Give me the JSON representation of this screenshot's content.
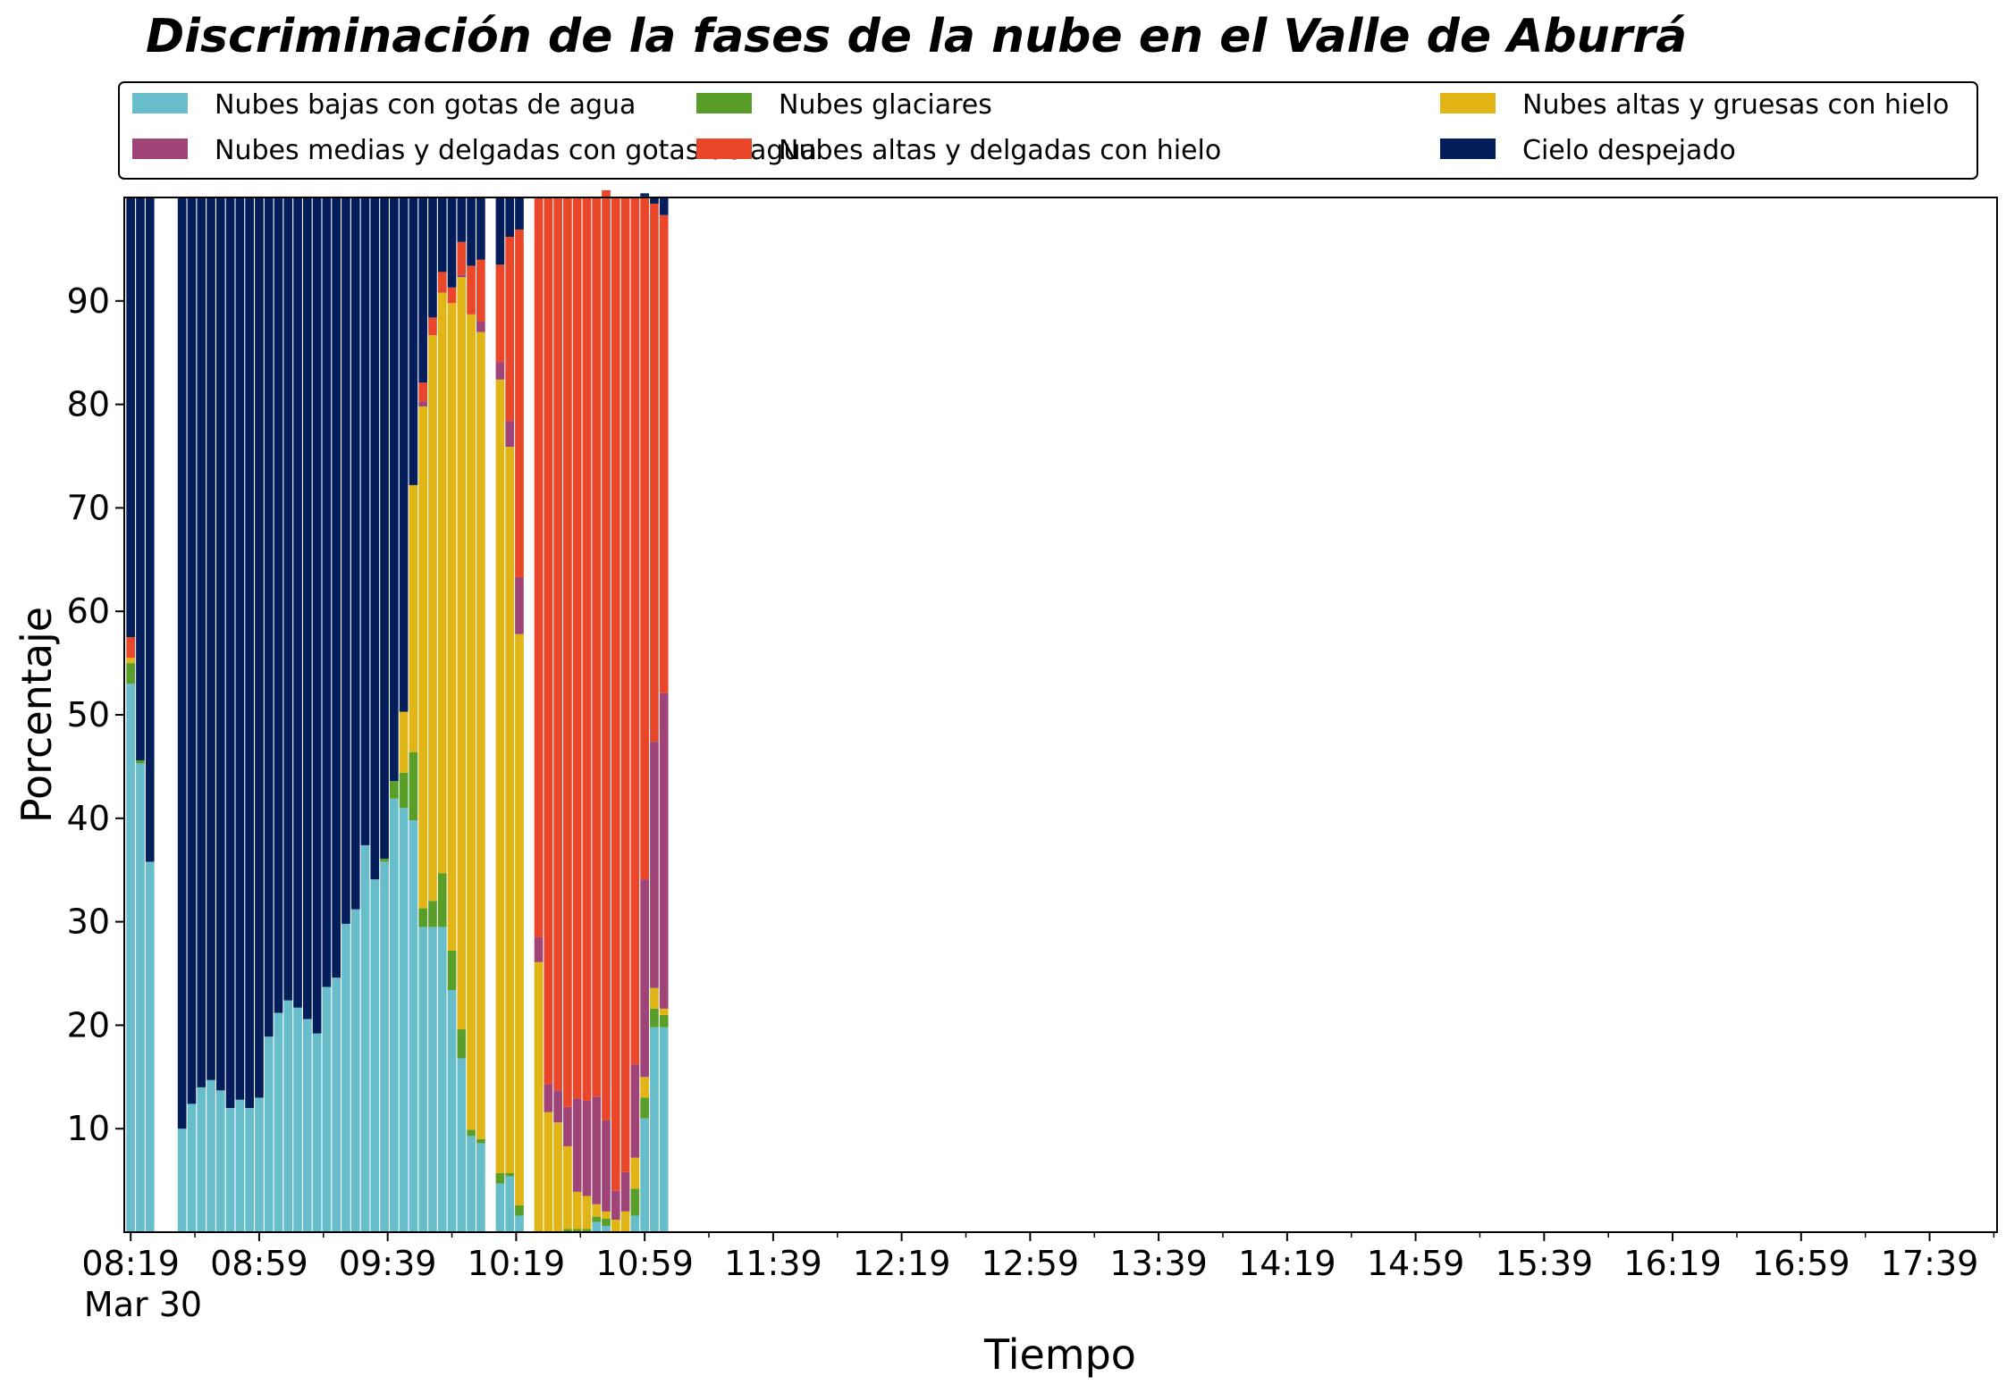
{
  "chart_data": {
    "type": "bar",
    "stacked": true,
    "title": "Discriminación de la fases de la nube en el Valle de Aburrá",
    "xlabel": "Tiempo",
    "ylabel": "Porcentaje",
    "date_label": "Mar 30",
    "ylim": [
      0,
      100
    ],
    "yticks": [
      10,
      20,
      30,
      40,
      50,
      60,
      70,
      80,
      90
    ],
    "xtick_labels": [
      "08:19",
      "08:59",
      "09:39",
      "10:19",
      "10:59",
      "11:39",
      "12:19",
      "12:59",
      "13:39",
      "14:19",
      "14:59",
      "15:39",
      "16:19",
      "16:59",
      "17:39"
    ],
    "xtick_minutes": [
      499,
      539,
      579,
      619,
      659,
      699,
      739,
      779,
      819,
      859,
      899,
      939,
      979,
      1019,
      1059
    ],
    "minor_tick_minutes": [
      479,
      519,
      559,
      599,
      639,
      679,
      719,
      759,
      799,
      839,
      879,
      919,
      959,
      999,
      1039,
      1079
    ],
    "xlim_minutes": [
      497,
      1080
    ],
    "legend_position": "top",
    "series": [
      {
        "name": "Nubes bajas con gotas de agua",
        "color": "#67bdc9",
        "values": [
          53.0,
          45.3,
          35.8,
          10.0,
          12.4,
          14.0,
          14.7,
          13.7,
          12.0,
          12.8,
          12.0,
          13.0,
          18.9,
          21.2,
          22.4,
          21.7,
          20.6,
          19.2,
          23.7,
          24.6,
          29.8,
          31.2,
          37.4,
          34.1,
          35.8,
          41.9,
          41.0,
          39.8,
          29.5,
          29.5,
          29.5,
          23.4,
          16.8,
          9.3,
          8.6,
          4.7,
          5.4,
          1.6,
          0,
          0,
          0,
          0,
          0,
          0,
          1.0,
          0.6,
          0,
          0,
          1.6,
          11.0,
          19.8,
          19.8
        ]
      },
      {
        "name": "Nubes glaciares",
        "color": "#5a9e2a",
        "values": [
          2.0,
          0.3,
          0,
          0,
          0,
          0,
          0,
          0,
          0,
          0,
          0,
          0,
          0,
          0,
          0,
          0,
          0,
          0,
          0,
          0,
          0,
          0,
          0,
          0,
          0.3,
          1.7,
          3.4,
          6.6,
          1.8,
          2.5,
          5.2,
          3.8,
          2.8,
          0.6,
          0.4,
          1.0,
          0.3,
          1.0,
          0,
          0,
          0,
          0.3,
          0.3,
          0.3,
          0.5,
          0.7,
          0,
          0,
          2.6,
          2.0,
          1.8,
          1.2
        ]
      },
      {
        "name": "Nubes altas y gruesas con hielo",
        "color": "#e1b515",
        "values": [
          0.5,
          0,
          0,
          0,
          0,
          0,
          0,
          0,
          0,
          0,
          0,
          0,
          0,
          0,
          0,
          0,
          0,
          0,
          0,
          0,
          0,
          0,
          0,
          0,
          0,
          0,
          5.9,
          25.8,
          48.5,
          54.7,
          56.1,
          62.6,
          72.7,
          78.8,
          78.0,
          76.7,
          70.2,
          55.2,
          26.1,
          11.6,
          10.6,
          8.0,
          3.6,
          3.2,
          1.2,
          0.7,
          1.2,
          2.0,
          3.0,
          2.0,
          2.0,
          0.6
        ]
      },
      {
        "name": "Nubes medias y delgadas con gotas de agua",
        "color": "#a04478",
        "values": [
          0,
          0,
          0,
          0,
          0,
          0,
          0,
          0,
          0,
          0,
          0,
          0,
          0,
          0,
          0,
          0,
          0,
          0,
          0,
          0,
          0,
          0,
          0,
          0,
          0,
          0,
          0,
          0,
          0.5,
          0,
          0,
          0,
          0.2,
          0,
          1.0,
          1.7,
          2.5,
          5.5,
          2.4,
          2.7,
          3.1,
          3.8,
          9.0,
          9.2,
          10.4,
          8.8,
          2.8,
          3.8,
          9.0,
          19.1,
          23.8,
          30.5
        ]
      },
      {
        "name": "Nubes altas y delgadas con hielo",
        "color": "#ea472a",
        "values": [
          2.0,
          0,
          0,
          0,
          0,
          0,
          0,
          0,
          0,
          0,
          0,
          0,
          0,
          0,
          0,
          0,
          0,
          0,
          0,
          0,
          0,
          0,
          0,
          0,
          0,
          0,
          0,
          0,
          1.8,
          1.7,
          2.0,
          1.5,
          3.2,
          4.7,
          6.0,
          9.4,
          17.8,
          33.6,
          71.5,
          85.7,
          86.3,
          87.9,
          87.1,
          87.3,
          86.9,
          89.9,
          96.0,
          94.2,
          83.8,
          66.0,
          52.0,
          46.2
        ]
      },
      {
        "name": "Cielo despejado",
        "color": "#041e5c",
        "values": [
          42.5,
          54.4,
          64.2,
          90.0,
          87.6,
          86.0,
          85.3,
          86.3,
          88.0,
          87.2,
          88.0,
          87.0,
          81.1,
          78.8,
          77.6,
          78.3,
          79.4,
          80.8,
          76.3,
          75.4,
          70.2,
          68.8,
          62.6,
          65.9,
          63.9,
          56.4,
          49.7,
          27.8,
          17.9,
          11.6,
          7.2,
          8.7,
          4.3,
          6.6,
          6.0,
          6.5,
          3.8,
          3.1,
          0,
          0,
          0,
          0,
          0,
          0,
          0,
          0,
          0,
          0,
          0,
          0.3,
          0.6,
          1.7
        ]
      }
    ],
    "x_minutes": [
      499,
      502,
      505,
      515,
      518,
      521,
      524,
      527,
      530,
      533,
      536,
      539,
      542,
      545,
      548,
      551,
      554,
      557,
      560,
      563,
      566,
      569,
      572,
      575,
      578,
      581,
      584,
      587,
      590,
      593,
      596,
      599,
      602,
      605,
      608,
      614,
      617,
      620,
      626,
      629,
      632,
      635,
      638,
      641,
      644,
      647,
      650,
      653,
      656,
      659,
      662,
      665
    ]
  }
}
